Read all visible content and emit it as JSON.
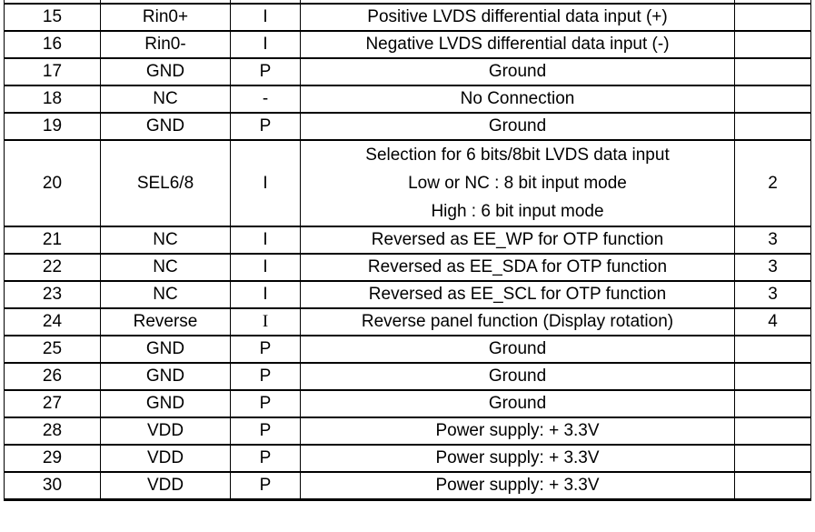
{
  "table": {
    "rows": [
      {
        "pin": "15",
        "symbol": "Rin0+",
        "io": "I",
        "description": [
          "Positive LVDS differential data input (+)"
        ],
        "remark": ""
      },
      {
        "pin": "16",
        "symbol": "Rin0-",
        "io": "I",
        "description": [
          "Negative LVDS differential data input (-)"
        ],
        "remark": ""
      },
      {
        "pin": "17",
        "symbol": "GND",
        "io": "P",
        "description": [
          "Ground"
        ],
        "remark": ""
      },
      {
        "pin": "18",
        "symbol": "NC",
        "io": "-",
        "description": [
          "No Connection"
        ],
        "remark": ""
      },
      {
        "pin": "19",
        "symbol": "GND",
        "io": "P",
        "description": [
          "Ground"
        ],
        "remark": ""
      },
      {
        "pin": "20",
        "symbol": "SEL6/8",
        "io": "I",
        "description": [
          "Selection for 6 bits/8bit LVDS data input",
          "Low or NC : 8 bit input mode",
          "High : 6 bit input mode"
        ],
        "remark": "2"
      },
      {
        "pin": "21",
        "symbol": "NC",
        "io": "I",
        "description": [
          "Reversed as EE_WP for OTP function"
        ],
        "remark": "3"
      },
      {
        "pin": "22",
        "symbol": "NC",
        "io": "I",
        "description": [
          "Reversed as EE_SDA for OTP function"
        ],
        "remark": "3"
      },
      {
        "pin": "23",
        "symbol": "NC",
        "io": "I",
        "description": [
          "Reversed as EE_SCL for OTP function"
        ],
        "remark": "3"
      },
      {
        "pin": "24",
        "symbol": "Reverse",
        "io": "I",
        "serif_io": true,
        "description": [
          "Reverse panel function (Display rotation)"
        ],
        "remark": "4"
      },
      {
        "pin": "25",
        "symbol": "GND",
        "io": "P",
        "description": [
          "Ground"
        ],
        "remark": ""
      },
      {
        "pin": "26",
        "symbol": "GND",
        "io": "P",
        "description": [
          "Ground"
        ],
        "remark": ""
      },
      {
        "pin": "27",
        "symbol": "GND",
        "io": "P",
        "description": [
          "Ground"
        ],
        "remark": ""
      },
      {
        "pin": "28",
        "symbol": "VDD",
        "io": "P",
        "description": [
          "Power supply: + 3.3V"
        ],
        "remark": ""
      },
      {
        "pin": "29",
        "symbol": "VDD",
        "io": "P",
        "description": [
          "Power supply: + 3.3V"
        ],
        "remark": ""
      },
      {
        "pin": "30",
        "symbol": "VDD",
        "io": "P",
        "description": [
          "Power supply: + 3.3V"
        ],
        "remark": ""
      }
    ],
    "colors": {
      "border": "#000000",
      "text": "#000000",
      "background": "#ffffff"
    }
  }
}
